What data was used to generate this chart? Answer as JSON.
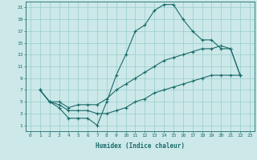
{
  "xlabel": "Humidex (Indice chaleur)",
  "bg_color": "#cce8e8",
  "line_color": "#1a6b6b",
  "grid_color": "#99cccc",
  "xlim": [
    -0.5,
    23.5
  ],
  "ylim": [
    0,
    22
  ],
  "xticks": [
    0,
    1,
    2,
    3,
    4,
    5,
    6,
    7,
    8,
    9,
    10,
    11,
    12,
    13,
    14,
    15,
    16,
    17,
    18,
    19,
    20,
    21,
    22,
    23
  ],
  "yticks": [
    1,
    3,
    5,
    7,
    9,
    11,
    13,
    15,
    17,
    19,
    21
  ],
  "curve1_x": [
    1,
    2,
    3,
    4,
    5,
    6,
    7,
    8,
    9,
    10,
    11,
    12,
    13,
    14,
    15,
    16,
    17,
    18,
    19,
    20,
    21,
    22
  ],
  "curve1_y": [
    7,
    5,
    4,
    2.2,
    2.2,
    2.2,
    1,
    5,
    9.5,
    13,
    17,
    18,
    20.5,
    21.5,
    21.5,
    19,
    17,
    15.5,
    15.5,
    14,
    14,
    9.5
  ],
  "curve2_x": [
    1,
    2,
    3,
    4,
    5,
    6,
    7,
    8,
    9,
    10,
    11,
    12,
    13,
    14,
    15,
    16,
    17,
    18,
    19,
    20,
    21,
    22
  ],
  "curve2_y": [
    7,
    5,
    5,
    4,
    4.5,
    4.5,
    4.5,
    5.5,
    7,
    8,
    9,
    10,
    11,
    12,
    12.5,
    13,
    13.5,
    14,
    14,
    14.5,
    14,
    9.5
  ],
  "curve3_x": [
    1,
    2,
    3,
    4,
    5,
    6,
    7,
    8,
    9,
    10,
    11,
    12,
    13,
    14,
    15,
    16,
    17,
    18,
    19,
    20,
    21,
    22
  ],
  "curve3_y": [
    7,
    5,
    4.5,
    3.5,
    3.5,
    3.5,
    3,
    3,
    3.5,
    4,
    5,
    5.5,
    6.5,
    7,
    7.5,
    8,
    8.5,
    9,
    9.5,
    9.5,
    9.5,
    9.5
  ]
}
